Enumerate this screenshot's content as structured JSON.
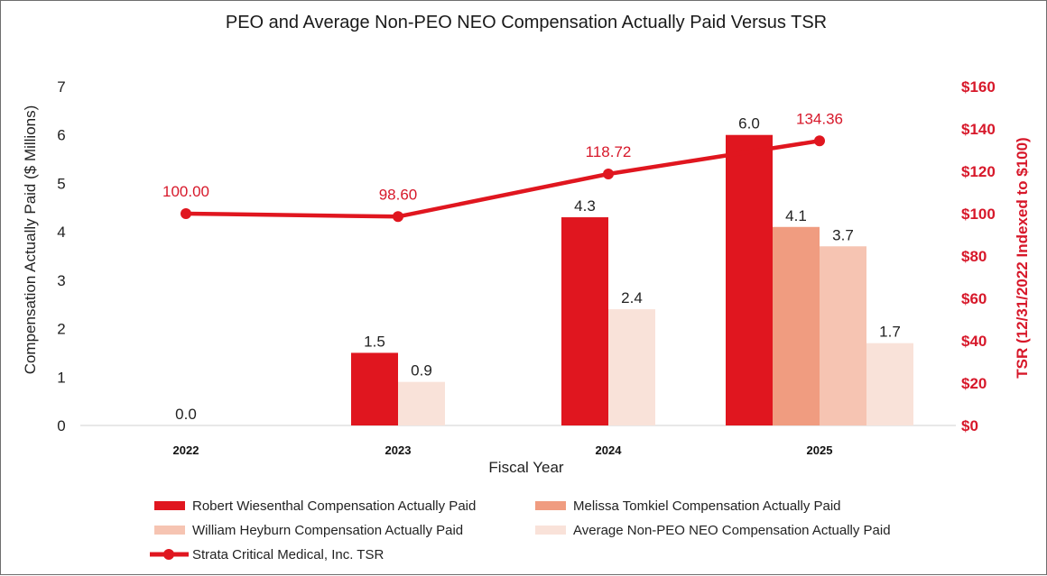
{
  "chart_data": {
    "type": "bar",
    "title": "PEO and Average Non-PEO NEO Compensation Actually Paid Versus TSR",
    "xlabel": "Fiscal Year",
    "ylabel": "Compensation Actually Paid ($ Millions)",
    "y2label": "TSR (12/31/2022 Indexed to $100)",
    "categories": [
      "2022",
      "2023",
      "2024",
      "2025"
    ],
    "ylim": [
      0,
      7
    ],
    "yticks": [
      "0",
      "1",
      "2",
      "3",
      "4",
      "5",
      "6",
      "7"
    ],
    "y2lim": [
      0,
      160
    ],
    "y2ticks": [
      "$0",
      "$20",
      "$40",
      "$60",
      "$80",
      "$100",
      "$120",
      "$140",
      "$160"
    ],
    "grid": false,
    "legend_position": "bottom",
    "series": [
      {
        "name": "Robert Wiesenthal Compensation Actually Paid",
        "type": "bar",
        "color": "#e0161f",
        "values": [
          0.0,
          1.5,
          4.3,
          6.0
        ],
        "labels": [
          "0.0",
          "1.5",
          "4.3",
          "6.0"
        ]
      },
      {
        "name": "Melissa Tomkiel Compensation Actually Paid",
        "type": "bar",
        "color": "#f09c80",
        "values": [
          null,
          null,
          null,
          4.1
        ],
        "labels": [
          null,
          null,
          null,
          "4.1"
        ]
      },
      {
        "name": "William Heyburn Compensation Actually Paid",
        "type": "bar",
        "color": "#f6c4b2",
        "values": [
          null,
          null,
          null,
          3.7
        ],
        "labels": [
          null,
          null,
          null,
          "3.7"
        ]
      },
      {
        "name": "Average Non-PEO NEO Compensation Actually Paid",
        "type": "bar",
        "color": "#f9e2d9",
        "values": [
          null,
          0.9,
          2.4,
          1.7
        ],
        "labels": [
          null,
          "0.9",
          "2.4",
          "1.7"
        ]
      },
      {
        "name": "Strata Critical Medical, Inc. TSR",
        "type": "line",
        "axis": "right",
        "color": "#e0161f",
        "values": [
          100.0,
          98.6,
          118.72,
          134.36
        ],
        "labels": [
          "100.00",
          "98.60",
          "118.72",
          "134.36"
        ]
      }
    ]
  }
}
